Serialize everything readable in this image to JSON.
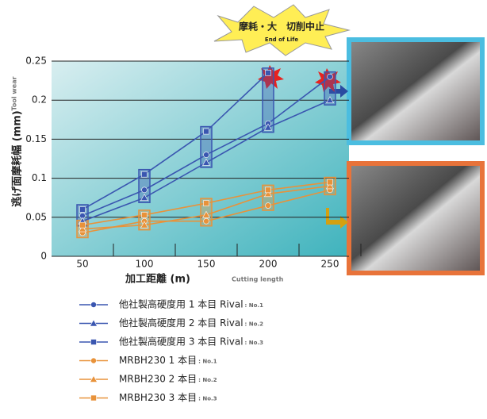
{
  "chart_data": {
    "type": "line",
    "banner": "摩耗・大　切削中止",
    "banner_sub": "End of Life",
    "y_label": "逃げ面摩耗幅 (mm)",
    "y_label_en": "Tool wear",
    "x_label": "加工距離 (m)",
    "x_label_en": "Cutting length",
    "categories": [
      "50",
      "100",
      "150",
      "200",
      "250"
    ],
    "ylim": [
      0,
      0.25
    ],
    "yticks": [
      0,
      0.05,
      0.1,
      0.15,
      0.2,
      0.25
    ],
    "grid": true,
    "series": [
      {
        "name": "他社製高硬度用 1 本目 Rival",
        "note": ": No.1",
        "color": "#3a56b0",
        "marker": "circle",
        "values": [
          0.052,
          0.085,
          0.13,
          0.17,
          0.23
        ]
      },
      {
        "name": "他社製高硬度用 2 本目 Rival",
        "note": ": No.2",
        "color": "#3a56b0",
        "marker": "triangle",
        "values": [
          0.045,
          0.075,
          0.12,
          0.165,
          0.2
        ]
      },
      {
        "name": "他社製高硬度用 3 本目 Rival",
        "note": ": No.3",
        "color": "#3a56b0",
        "marker": "square",
        "values": [
          0.06,
          0.105,
          0.16,
          0.235,
          null
        ]
      },
      {
        "name": "MRBH230 1 本目",
        "note": ": No.1",
        "color": "#e8923a",
        "marker": "circle",
        "values": [
          0.03,
          0.045,
          0.045,
          0.065,
          0.085
        ]
      },
      {
        "name": "MRBH230 2 本目",
        "note": ": No.2",
        "color": "#e8923a",
        "marker": "triangle",
        "values": [
          0.035,
          0.04,
          0.053,
          0.08,
          0.09
        ]
      },
      {
        "name": "MRBH230 3 本目",
        "note": ": No.3",
        "color": "#e8923a",
        "marker": "square",
        "values": [
          0.04,
          0.053,
          0.068,
          0.085,
          0.095
        ]
      }
    ]
  }
}
